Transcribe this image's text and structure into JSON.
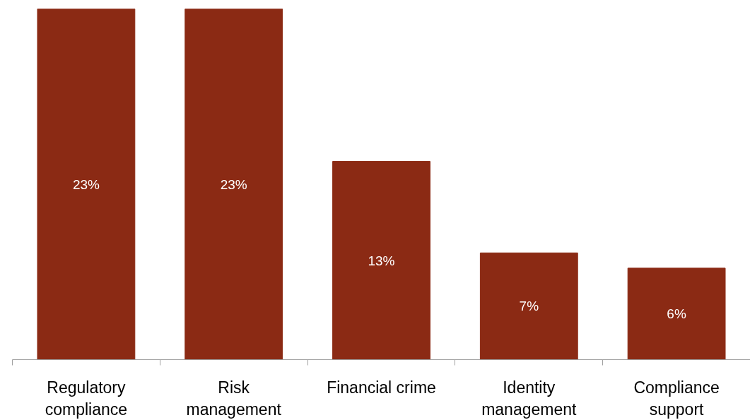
{
  "chart_data": {
    "type": "bar",
    "categories": [
      "Regulatory\ncompliance",
      "Risk\nmanagement",
      "Financial crime",
      "Identity\nmanagement",
      "Compliance\nsupport"
    ],
    "values": [
      23,
      23,
      13,
      7,
      6
    ],
    "value_labels": [
      "23%",
      "23%",
      "13%",
      "7%",
      "6%"
    ],
    "color": "#8b2a14",
    "grid": false
  }
}
